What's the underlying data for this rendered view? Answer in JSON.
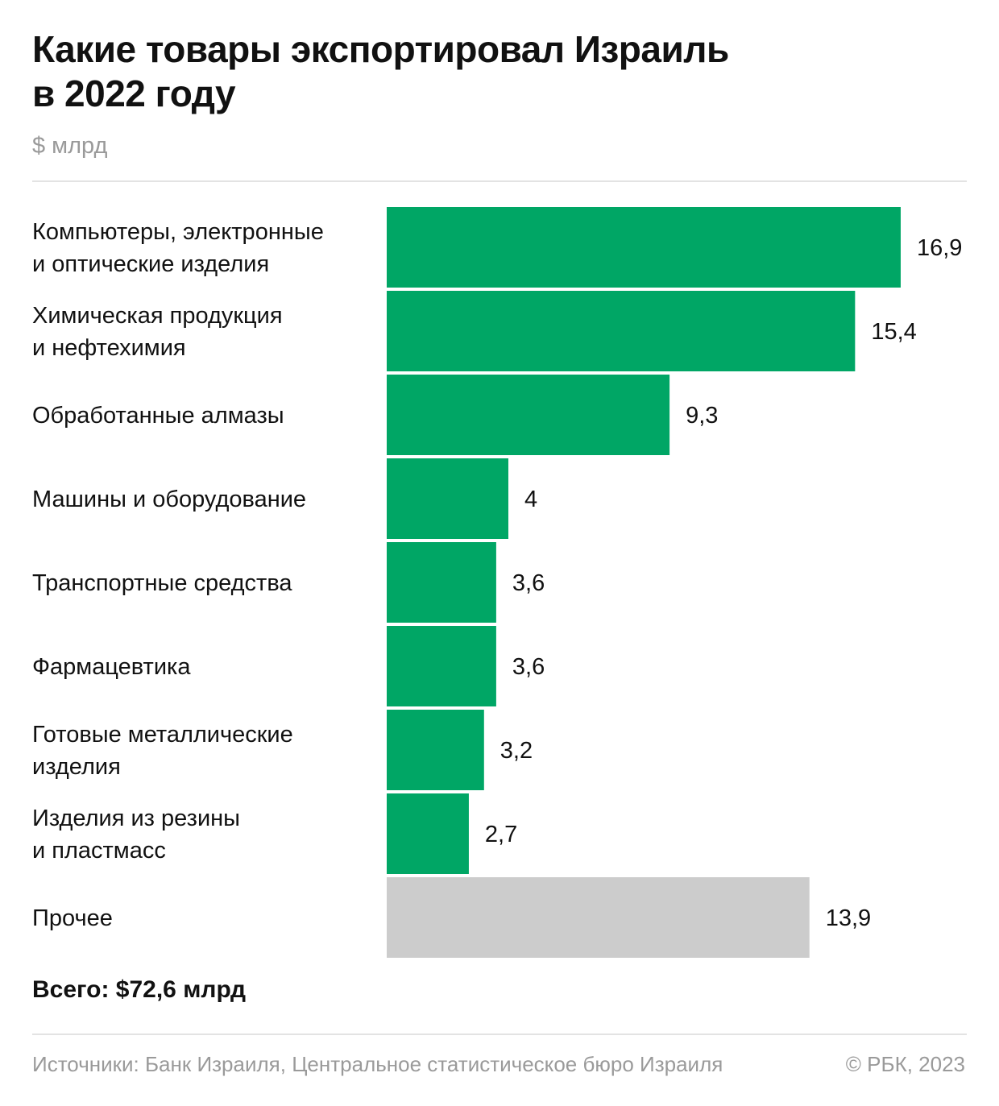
{
  "title": "Какие товары экспортировал Израиль\nв 2022 году",
  "unit": "$ млрд",
  "total": "Всего: $72,6 млрд",
  "source": "Источники: Банк Израиля, Центральное статистическое бюро Израиля",
  "copyright": "© РБК, 2023",
  "colors": {
    "main": "#00a665",
    "other": "#cccccc"
  },
  "chart_data": {
    "type": "bar",
    "orientation": "horizontal",
    "title": "Какие товары экспортировал Израиль в 2022 году",
    "unit": "$ млрд",
    "categories": [
      "Компьютеры, электронные\nи оптические изделия",
      "Химическая продукция\nи нефтехимия",
      "Обработанные алмазы",
      "Машины и оборудование",
      "Транспортные средства",
      "Фармацевтика",
      "Готовые металлические\nизделия",
      "Изделия из резины\nи пластмасс",
      "Прочее"
    ],
    "values": [
      16.9,
      15.4,
      9.3,
      4,
      3.6,
      3.6,
      3.2,
      2.7,
      13.9
    ],
    "value_labels": [
      "16,9",
      "15,4",
      "9,3",
      "4",
      "3,6",
      "3,6",
      "3,2",
      "2,7",
      "13,9"
    ],
    "highlight": [
      true,
      true,
      true,
      true,
      true,
      true,
      true,
      true,
      false
    ],
    "grid": false,
    "legend": "none"
  }
}
